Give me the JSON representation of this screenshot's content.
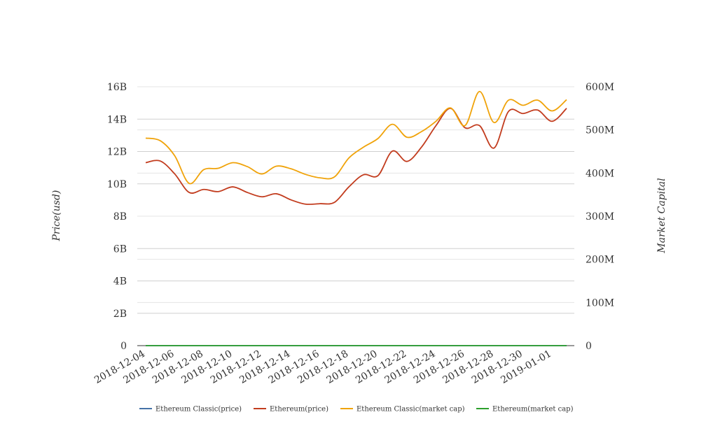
{
  "chart_data": {
    "type": "line",
    "title": "",
    "xlabel": "",
    "ylabel": "Price(usd)",
    "y2label": "Market Capital",
    "grid": true,
    "legend_position": "bottom",
    "x_tick_labels": [
      "2018-12-04",
      "2018-12-06",
      "2018-12-08",
      "2018-12-10",
      "2018-12-12",
      "2018-12-14",
      "2018-12-16",
      "2018-12-18",
      "2018-12-20",
      "2018-12-22",
      "2018-12-24",
      "2018-12-26",
      "2018-12-28",
      "2018-12-30",
      "2019-01-01"
    ],
    "x": [
      "2018-12-04",
      "2018-12-05",
      "2018-12-06",
      "2018-12-07",
      "2018-12-08",
      "2018-12-09",
      "2018-12-10",
      "2018-12-11",
      "2018-12-12",
      "2018-12-13",
      "2018-12-14",
      "2018-12-15",
      "2018-12-16",
      "2018-12-17",
      "2018-12-18",
      "2018-12-19",
      "2018-12-20",
      "2018-12-21",
      "2018-12-22",
      "2018-12-23",
      "2018-12-24",
      "2018-12-25",
      "2018-12-26",
      "2018-12-27",
      "2018-12-28",
      "2018-12-29",
      "2018-12-30",
      "2018-12-31",
      "2019-01-01",
      "2019-01-02"
    ],
    "y_left": {
      "ticks": [
        "0",
        "2B",
        "4B",
        "6B",
        "8B",
        "10B",
        "12B",
        "14B",
        "16B"
      ],
      "min": 0,
      "max": 16000000000
    },
    "y_right": {
      "ticks": [
        "0",
        "100M",
        "200M",
        "300M",
        "400M",
        "500M",
        "600M"
      ],
      "min": 0,
      "max": 600000000
    },
    "series": [
      {
        "name": "Ethereum Classic(price)",
        "axis": "left",
        "color": "#4572a7",
        "values": [
          0,
          0,
          0,
          0,
          0,
          0,
          0,
          0,
          0,
          0,
          0,
          0,
          0,
          0,
          0,
          0,
          0,
          0,
          0,
          0,
          0,
          0,
          0,
          0,
          0,
          0,
          0,
          0,
          0,
          0
        ]
      },
      {
        "name": "Ethereum(price)",
        "axis": "right",
        "color": "#c23c1e",
        "values": [
          424,
          428,
          398,
          355,
          362,
          357,
          368,
          355,
          345,
          352,
          338,
          328,
          329,
          332,
          368,
          396,
          394,
          451,
          427,
          460,
          510,
          550,
          505,
          510,
          458,
          543,
          538,
          546,
          520,
          550
        ]
      },
      {
        "name": "Ethereum Classic(market cap)",
        "axis": "right",
        "color": "#f0a30a",
        "values": [
          481,
          475,
          440,
          376,
          408,
          411,
          424,
          415,
          398,
          416,
          410,
          397,
          389,
          391,
          435,
          460,
          480,
          513,
          483,
          496,
          520,
          551,
          510,
          589,
          517,
          569,
          557,
          569,
          544,
          570
        ]
      },
      {
        "name": "Ethereum(market cap)",
        "axis": "left",
        "color": "#2ca02c",
        "values": [
          0,
          0,
          0,
          0,
          0,
          0,
          0,
          0,
          0,
          0,
          0,
          0,
          0,
          0,
          0,
          0,
          0,
          0,
          0,
          0,
          0,
          0,
          0,
          0,
          0,
          0,
          0,
          0,
          0,
          0
        ]
      }
    ]
  }
}
